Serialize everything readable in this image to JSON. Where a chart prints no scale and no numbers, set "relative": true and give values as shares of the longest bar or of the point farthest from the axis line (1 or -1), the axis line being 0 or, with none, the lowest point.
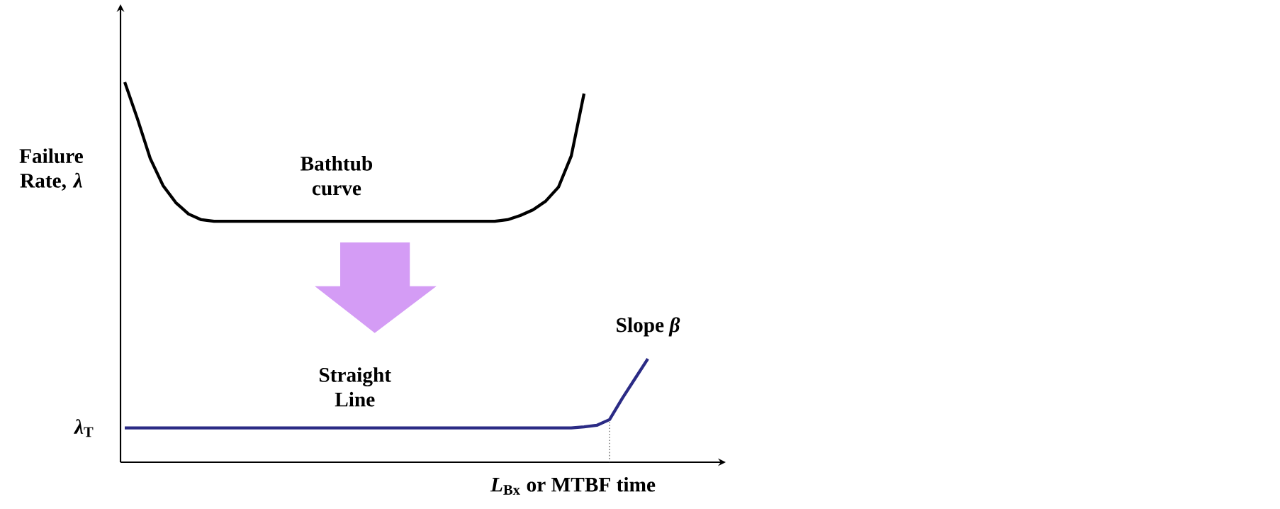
{
  "chart_data": {
    "type": "line",
    "relative": true,
    "xlabel": "*L*$_{Bx}$ or MTBF time",
    "ylabel": "Failure Rate, *λ*",
    "categories": [
      null,
      null,
      null,
      null,
      null,
      null,
      null,
      null,
      null,
      null,
      null,
      null,
      null,
      null,
      null,
      null,
      null,
      null,
      null,
      null,
      null,
      null,
      null,
      null,
      null,
      null,
      null,
      null,
      null,
      null,
      null,
      null,
      null,
      null,
      null,
      null,
      null,
      null,
      null,
      null,
      null,
      null
    ],
    "series": [
      {
        "color": "#000000",
        "values": [
          1.0,
          0.903,
          0.799,
          0.728,
          0.683,
          0.653,
          0.638,
          0.634,
          0.634,
          0.634,
          0.634,
          0.634,
          0.634,
          0.634,
          0.634,
          0.634,
          0.634,
          0.634,
          0.634,
          0.634,
          0.634,
          0.634,
          0.634,
          0.634,
          0.634,
          0.634,
          0.634,
          0.634,
          0.634,
          0.634,
          0.638,
          0.649,
          0.664,
          0.687,
          0.724,
          0.806,
          0.97,
          null,
          null,
          null,
          null,
          null
        ]
      },
      {
        "color": "#2b2b85",
        "values": [
          0.09,
          0.09,
          0.09,
          0.09,
          0.09,
          0.09,
          0.09,
          0.09,
          0.09,
          0.09,
          0.09,
          0.09,
          0.09,
          0.09,
          0.09,
          0.09,
          0.09,
          0.09,
          0.09,
          0.09,
          0.09,
          0.09,
          0.09,
          0.09,
          0.09,
          0.09,
          0.09,
          0.09,
          0.09,
          0.09,
          0.09,
          0.09,
          0.09,
          0.09,
          0.09,
          0.09,
          0.093,
          0.097,
          0.112,
          0.168,
          0.22,
          0.272
        ]
      }
    ],
    "annotations": [
      "Bathtub curve",
      "Straight Line",
      "Slope *β*",
      "*λ*$_{T}$"
    ]
  }
}
